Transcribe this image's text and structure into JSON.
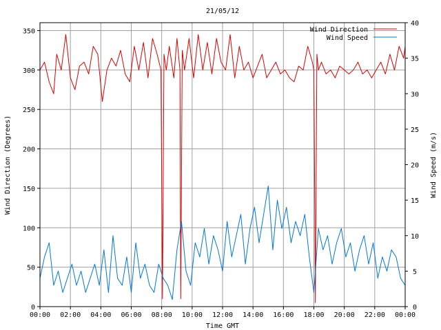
{
  "chart_data": {
    "type": "line",
    "title": "21/05/12",
    "xlabel": "Time GMT",
    "ylabel_left": "Wind Direction (Degrees)",
    "ylabel_right": "Wind Speed (m/s)",
    "x_unit": "hours",
    "xlim": [
      0,
      24
    ],
    "ylim_left": [
      0,
      360
    ],
    "ylim_right": [
      0,
      40
    ],
    "grid": true,
    "legend_position": "top-right",
    "x_ticks": [
      0,
      2,
      4,
      6,
      8,
      10,
      12,
      14,
      16,
      18,
      20,
      22,
      24
    ],
    "x_tick_labels": [
      "00:00",
      "02:00",
      "04:00",
      "06:00",
      "08:00",
      "10:00",
      "12:00",
      "14:00",
      "16:00",
      "18:00",
      "20:00",
      "22:00",
      "00:00"
    ],
    "y_ticks_left": [
      0,
      50,
      100,
      150,
      200,
      250,
      300,
      350
    ],
    "y_tick_labels_left": [
      "0",
      "50",
      "100",
      "150",
      "200",
      "250",
      "300",
      "350"
    ],
    "y_ticks_right": [
      0,
      5,
      10,
      15,
      20,
      25,
      30,
      35,
      40
    ],
    "y_tick_labels_right": [
      "0",
      "5",
      "10",
      "15",
      "20",
      "25",
      "30",
      "35",
      "40"
    ],
    "series": [
      {
        "name": "Wind Direction",
        "color": "#dd0000",
        "axis": "left",
        "x": [
          0,
          0.3,
          0.6,
          0.9,
          1.1,
          1.4,
          1.7,
          2.0,
          2.3,
          2.6,
          2.9,
          3.2,
          3.5,
          3.8,
          4.1,
          4.4,
          4.7,
          5.0,
          5.3,
          5.6,
          5.9,
          6.2,
          6.5,
          6.8,
          7.1,
          7.4,
          7.7,
          7.95,
          8.05,
          8.15,
          8.3,
          8.5,
          8.8,
          9.0,
          9.1,
          9.2,
          9.25,
          9.35,
          9.5,
          9.8,
          10.1,
          10.4,
          10.7,
          11.0,
          11.3,
          11.6,
          11.9,
          12.2,
          12.5,
          12.8,
          13.1,
          13.4,
          13.7,
          14.0,
          14.3,
          14.6,
          14.9,
          15.2,
          15.5,
          15.8,
          16.1,
          16.4,
          16.7,
          17.0,
          17.3,
          17.6,
          17.9,
          18.0,
          18.1,
          18.2,
          18.3,
          18.5,
          18.8,
          19.1,
          19.4,
          19.7,
          20.0,
          20.3,
          20.6,
          20.9,
          21.2,
          21.5,
          21.8,
          22.1,
          22.4,
          22.7,
          23.0,
          23.3,
          23.6,
          23.9,
          24.0
        ],
        "values": [
          300,
          310,
          285,
          270,
          320,
          300,
          345,
          290,
          275,
          305,
          310,
          295,
          330,
          320,
          260,
          300,
          315,
          305,
          325,
          295,
          285,
          330,
          300,
          335,
          290,
          340,
          320,
          300,
          10,
          320,
          300,
          330,
          290,
          340,
          320,
          300,
          10,
          325,
          300,
          340,
          290,
          345,
          300,
          335,
          295,
          340,
          310,
          300,
          345,
          290,
          330,
          300,
          310,
          290,
          305,
          320,
          290,
          300,
          310,
          295,
          300,
          290,
          285,
          305,
          300,
          330,
          310,
          300,
          5,
          320,
          300,
          310,
          295,
          300,
          290,
          305,
          300,
          295,
          300,
          310,
          295,
          300,
          290,
          300,
          310,
          295,
          320,
          300,
          330,
          315,
          330
        ]
      },
      {
        "name": "Wind Speed",
        "color": "#0077dd",
        "axis": "right",
        "x": [
          0,
          0.3,
          0.6,
          0.9,
          1.2,
          1.5,
          1.8,
          2.1,
          2.4,
          2.7,
          3.0,
          3.3,
          3.6,
          3.9,
          4.2,
          4.5,
          4.8,
          5.1,
          5.4,
          5.7,
          6.0,
          6.3,
          6.6,
          6.9,
          7.2,
          7.5,
          7.8,
          8.1,
          8.4,
          8.7,
          9.0,
          9.3,
          9.6,
          9.9,
          10.2,
          10.5,
          10.8,
          11.1,
          11.4,
          11.7,
          12.0,
          12.3,
          12.6,
          12.9,
          13.2,
          13.5,
          13.8,
          14.1,
          14.4,
          14.7,
          15.0,
          15.3,
          15.6,
          15.9,
          16.2,
          16.5,
          16.8,
          17.1,
          17.4,
          17.7,
          18.0,
          18.3,
          18.6,
          18.9,
          19.2,
          19.5,
          19.8,
          20.1,
          20.4,
          20.7,
          21.0,
          21.3,
          21.6,
          21.9,
          22.2,
          22.5,
          22.8,
          23.1,
          23.4,
          23.7,
          24.0
        ],
        "values": [
          4,
          7,
          9,
          3,
          5,
          2,
          4,
          6,
          3,
          5,
          2,
          4,
          6,
          3,
          8,
          2,
          10,
          4,
          3,
          7,
          2,
          9,
          4,
          6,
          3,
          2,
          6,
          4,
          3,
          1,
          8,
          12,
          5,
          3,
          9,
          7,
          11,
          6,
          10,
          8,
          5,
          12,
          7,
          10,
          13,
          6,
          11,
          14,
          9,
          13,
          17,
          8,
          15,
          11,
          14,
          9,
          12,
          10,
          13,
          7,
          2,
          11,
          8,
          10,
          6,
          9,
          11,
          7,
          9,
          5,
          8,
          10,
          6,
          9,
          4,
          7,
          5,
          8,
          7,
          4,
          3
        ]
      }
    ]
  }
}
